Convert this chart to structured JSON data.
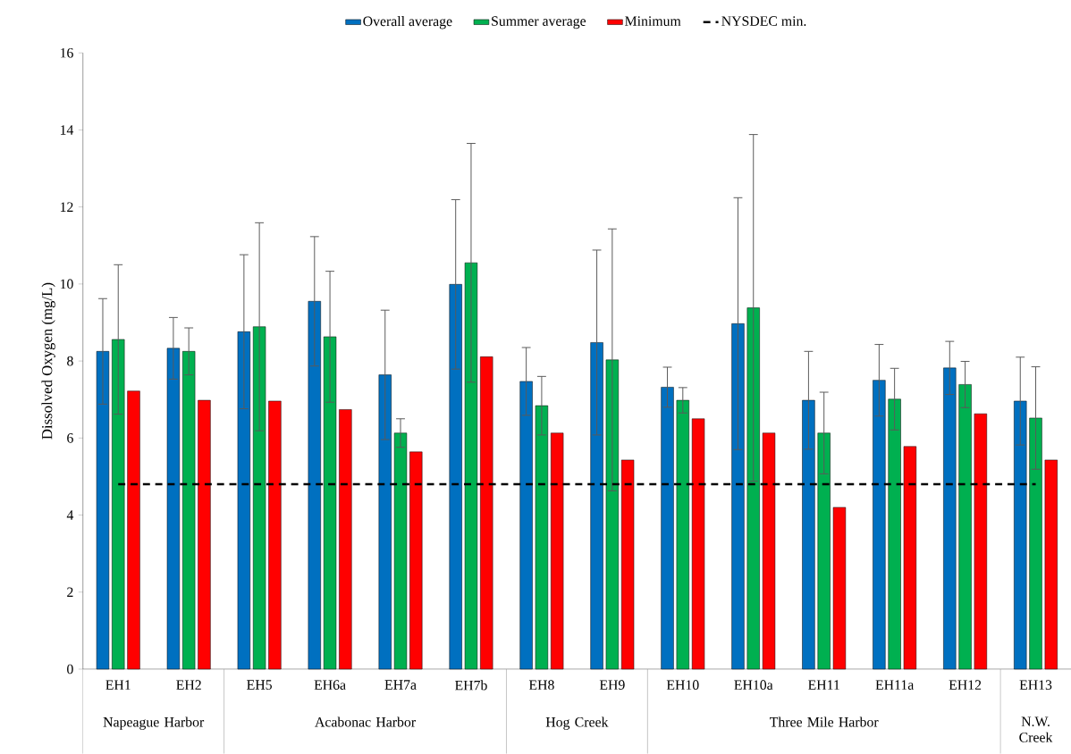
{
  "chart_data": {
    "type": "bar",
    "ylabel": "Dissolved Oxygen (mg/L)",
    "categories": [
      "EH1",
      "EH2",
      "EH5",
      "EH6a",
      "EH7a",
      "EH7b",
      "EH8",
      "EH9",
      "EH10",
      "EH10a",
      "EH11",
      "EH11a",
      "EH12",
      "EH13"
    ],
    "series": [
      {
        "name": "Overall average",
        "color": "#0070c0",
        "values": [
          8.25,
          8.33,
          8.76,
          9.55,
          7.64,
          9.99,
          7.47,
          8.48,
          7.32,
          8.97,
          6.98,
          7.5,
          7.82,
          6.96
        ],
        "errors": [
          1.37,
          0.8,
          2.0,
          1.68,
          1.68,
          2.2,
          0.88,
          2.4,
          0.52,
          3.27,
          1.27,
          0.93,
          0.69,
          1.14
        ]
      },
      {
        "name": "Summer average",
        "color": "#00b050",
        "values": [
          8.56,
          8.25,
          8.89,
          8.63,
          6.13,
          10.55,
          6.84,
          8.03,
          6.98,
          9.38,
          6.13,
          7.01,
          7.39,
          6.52
        ],
        "errors": [
          1.94,
          0.61,
          2.7,
          1.7,
          0.37,
          3.1,
          0.76,
          3.4,
          0.33,
          4.5,
          1.06,
          0.8,
          0.6,
          1.33
        ]
      },
      {
        "name": "Minimum",
        "color": "#ff0000",
        "values": [
          7.22,
          6.98,
          6.96,
          6.74,
          5.64,
          8.11,
          6.13,
          5.43,
          6.5,
          6.13,
          4.2,
          5.78,
          6.63,
          5.43
        ]
      }
    ],
    "ylim": [
      0,
      16
    ],
    "yticks": [
      0,
      2,
      4,
      6,
      8,
      10,
      12,
      14,
      16
    ],
    "ref_lines": [
      {
        "axis": "y",
        "value": 4.8,
        "label": "NYSDEC min.",
        "color": "#000000",
        "line_style": "dashed"
      }
    ],
    "legend": "top",
    "annotations": [
      "Napeague Harbor",
      "Acabonac Harbor",
      "Hog Creek",
      "Three Mile Harbor",
      "N.W. Creek"
    ]
  }
}
